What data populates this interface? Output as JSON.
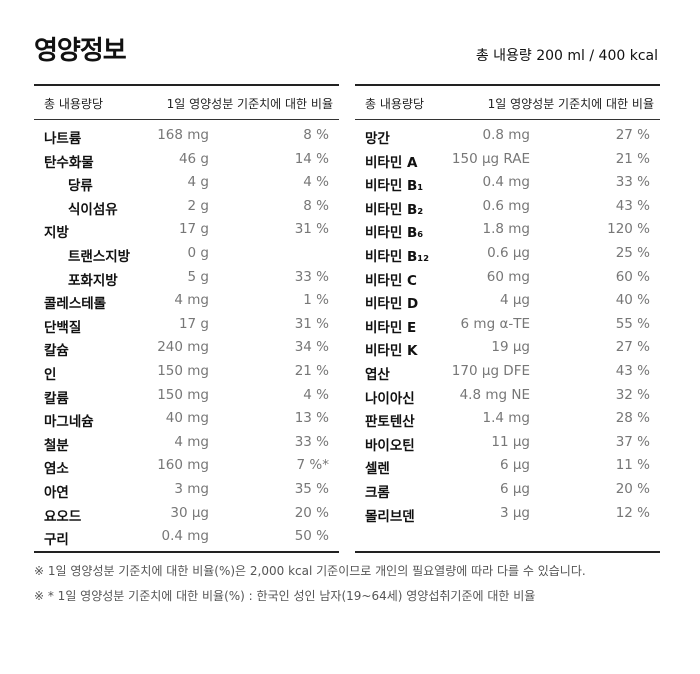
{
  "title": "영양정보",
  "total": "총 내용량 200 ml /  400 kcal",
  "header": {
    "col1": "총 내용량당",
    "col2": "1일 영양성분 기준치에 대한 비율"
  },
  "left_rows": [
    {
      "name": "나트륨",
      "amount": "168 mg",
      "pct": "8 %",
      "indent": false
    },
    {
      "name": "탄수화물",
      "amount": "46 g",
      "pct": "14 %",
      "indent": false
    },
    {
      "name": "당류",
      "amount": "4 g",
      "pct": "4 %",
      "indent": true
    },
    {
      "name": "식이섬유",
      "amount": "2 g",
      "pct": "8 %",
      "indent": true
    },
    {
      "name": "지방",
      "amount": "17 g",
      "pct": "31 %",
      "indent": false
    },
    {
      "name": "트랜스지방",
      "amount": "0 g",
      "pct": "",
      "indent": true
    },
    {
      "name": "포화지방",
      "amount": "5 g",
      "pct": "33 %",
      "indent": true
    },
    {
      "name": "콜레스테롤",
      "amount": "4 mg",
      "pct": "1 %",
      "indent": false
    },
    {
      "name": "단백질",
      "amount": "17 g",
      "pct": "31 %",
      "indent": false
    },
    {
      "name": "칼슘",
      "amount": "240 mg",
      "pct": "34 %",
      "indent": false
    },
    {
      "name": "인",
      "amount": "150 mg",
      "pct": "21 %",
      "indent": false
    },
    {
      "name": "칼륨",
      "amount": "150 mg",
      "pct": "4 %",
      "indent": false
    },
    {
      "name": "마그네슘",
      "amount": "40 mg",
      "pct": "13 %",
      "indent": false
    },
    {
      "name": "철분",
      "amount": "4 mg",
      "pct": "33 %",
      "indent": false
    },
    {
      "name": "염소",
      "amount": "160 mg",
      "pct": "7 %*",
      "indent": false
    },
    {
      "name": "아연",
      "amount": "3 mg",
      "pct": "35 %",
      "indent": false
    },
    {
      "name": "요오드",
      "amount": "30 μg",
      "pct": "20 %",
      "indent": false
    },
    {
      "name": "구리",
      "amount": "0.4 mg",
      "pct": "50 %",
      "indent": false
    }
  ],
  "right_rows": [
    {
      "name": "망간",
      "amount": "0.8 mg",
      "pct": "27 %",
      "indent": false
    },
    {
      "name": "비타민 A",
      "amount": "150 μg RAE",
      "pct": "21 %",
      "indent": false
    },
    {
      "name": "비타민 B₁",
      "amount": "0.4 mg",
      "pct": "33 %",
      "indent": false
    },
    {
      "name": "비타민 B₂",
      "amount": "0.6 mg",
      "pct": "43 %",
      "indent": false
    },
    {
      "name": "비타민 B₆",
      "amount": "1.8 mg",
      "pct": "120 %",
      "indent": false
    },
    {
      "name": "비타민 B₁₂",
      "amount": "0.6 μg",
      "pct": "25 %",
      "indent": false
    },
    {
      "name": "비타민 C",
      "amount": "60 mg",
      "pct": "60 %",
      "indent": false
    },
    {
      "name": "비타민 D",
      "amount": "4 μg",
      "pct": "40 %",
      "indent": false
    },
    {
      "name": "비타민 E",
      "amount": "6 mg α-TE",
      "pct": "55 %",
      "indent": false
    },
    {
      "name": "비타민 K",
      "amount": "19 μg",
      "pct": "27 %",
      "indent": false
    },
    {
      "name": "엽산",
      "amount": "170 μg DFE",
      "pct": "43 %",
      "indent": false
    },
    {
      "name": "나이아신",
      "amount": "4.8 mg NE",
      "pct": "32 %",
      "indent": false
    },
    {
      "name": "판토텐산",
      "amount": "1.4 mg",
      "pct": "28 %",
      "indent": false
    },
    {
      "name": "바이오틴",
      "amount": "11 μg",
      "pct": "37 %",
      "indent": false
    },
    {
      "name": "셀렌",
      "amount": "6 μg",
      "pct": "11 %",
      "indent": false
    },
    {
      "name": "크롬",
      "amount": "6 μg",
      "pct": "20 %",
      "indent": false
    },
    {
      "name": "몰리브덴",
      "amount": "3 μg",
      "pct": "12 %",
      "indent": false
    }
  ],
  "notes": [
    "※ 1일 영양성분 기준치에 대한 비율(%)은 2,000 kcal 기준이므로 개인의 필요열량에 따라 다를 수 있습니다.",
    "※ * 1일 영양성분 기준치에 대한 비율(%) : 한국인 성인 남자(19~64세) 영양섭취기준에 대한 비율"
  ]
}
